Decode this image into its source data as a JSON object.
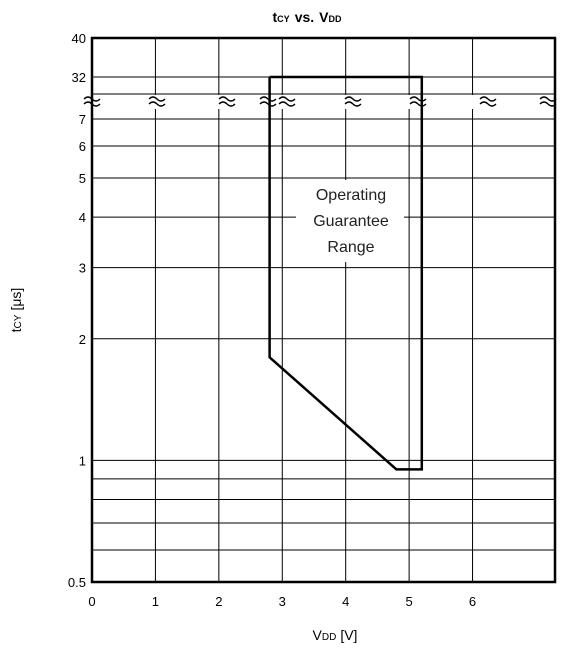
{
  "chart_data": {
    "type": "line",
    "title": {
      "y_var": "t",
      "y_sub": "CY",
      "vs": "vs.",
      "x_var": "V",
      "x_sub": "DD"
    },
    "xlabel": {
      "var": "V",
      "sub": "DD",
      "unit": "[V]"
    },
    "ylabel": {
      "var": "t",
      "sub": "CY",
      "unit": "[μs]"
    },
    "x_ticks": [
      "0",
      "1",
      "2",
      "3",
      "4",
      "5",
      "6"
    ],
    "y_ticks": [
      "0.5",
      "1",
      "2",
      "3",
      "4",
      "5",
      "6",
      "7",
      "32",
      "40"
    ],
    "x_range": [
      0,
      7.3
    ],
    "y_scale": "log, with axis break between 7 and 32",
    "y_lower_range": [
      0.5,
      7
    ],
    "y_upper_range": [
      32,
      40
    ],
    "grid": true,
    "axis_break_symbol": "≈",
    "annotation": {
      "lines": [
        "Operating",
        "Guarantee",
        "Range"
      ]
    },
    "series": [
      {
        "kind": "region-boundary",
        "points": [
          {
            "x": 2.8,
            "y": 32
          },
          {
            "x": 5.2,
            "y": 32
          },
          {
            "x": 5.2,
            "y": 0.95
          },
          {
            "x": 4.8,
            "y": 0.95
          },
          {
            "x": 2.8,
            "y": 1.8
          },
          {
            "x": 2.8,
            "y": 32
          }
        ]
      }
    ]
  }
}
